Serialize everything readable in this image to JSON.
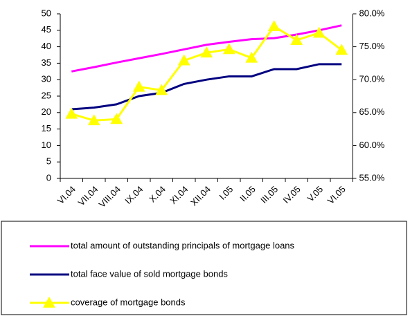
{
  "chart_data": {
    "type": "line",
    "categories": [
      "VI.04",
      "VII.04",
      "VIII.04",
      "IX.04",
      "X.04",
      "XI.04",
      "XII.04",
      "I.05",
      "II.05",
      "III.05",
      "IV.05",
      "V.05",
      "VI.05"
    ],
    "series": [
      {
        "name": "total amount of outstanding principals of mortgage loans",
        "color": "#ff00ff",
        "values": [
          32.5,
          33.8,
          35.2,
          36.5,
          37.8,
          39.2,
          40.6,
          41.5,
          42.3,
          42.6,
          43.7,
          45,
          46.5
        ]
      },
      {
        "name": "total face value of sold mortgage bonds",
        "color": "#000080",
        "values": [
          21,
          21.5,
          22.5,
          25,
          26,
          28.7,
          30,
          31,
          31,
          33.2,
          33.2,
          34.7,
          34.7
        ]
      },
      {
        "name": "coverage of mortgage bonds",
        "color": "#ffff00",
        "axis": "y2",
        "marker": "triangle",
        "values": [
          64.8,
          63.8,
          64.0,
          68.9,
          68.4,
          72.9,
          74.1,
          74.6,
          73.3,
          78.1,
          76.0,
          77.1,
          74.5
        ]
      }
    ],
    "ylim": [
      0,
      50
    ],
    "yticks": [
      0,
      5,
      10,
      15,
      20,
      25,
      30,
      35,
      40,
      45,
      50
    ],
    "y2lim": [
      55,
      80
    ],
    "y2ticks": [
      {
        "value": 55,
        "label": "55.0%"
      },
      {
        "value": 60,
        "label": "60.0%"
      },
      {
        "value": 65,
        "label": "65.0%"
      },
      {
        "value": 70,
        "label": "70.0%"
      },
      {
        "value": 75,
        "label": "75.0%"
      },
      {
        "value": 80,
        "label": "80.0%"
      }
    ],
    "grid": false
  }
}
